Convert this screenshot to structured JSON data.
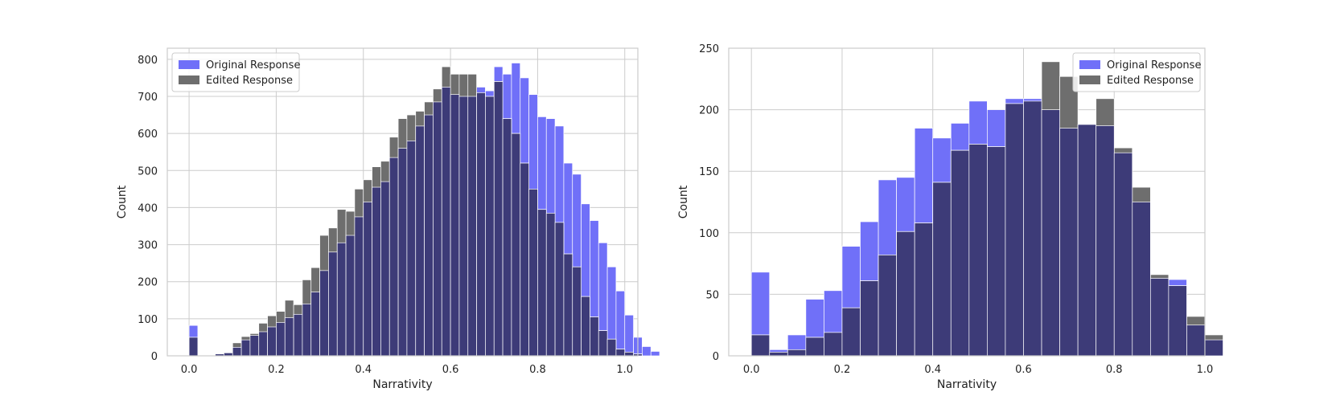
{
  "colors": {
    "original": "#7070f8",
    "edited": "#6e6e6e",
    "overlap": "#3d3b78",
    "grid": "#cccccc",
    "frame": "#cccccc",
    "bar_edge": "#ffffff"
  },
  "chart_data": [
    {
      "type": "bar",
      "subtype": "overlaid-histogram",
      "title": "",
      "xlabel": "Narrativity",
      "ylabel": "Count",
      "xlim": [
        -0.05,
        1.03
      ],
      "ylim": [
        0,
        830
      ],
      "xticks": [
        0.0,
        0.2,
        0.4,
        0.6,
        0.8,
        1.0
      ],
      "xtick_labels": [
        "0.0",
        "0.2",
        "0.4",
        "0.6",
        "0.8",
        "1.0"
      ],
      "yticks": [
        0,
        100,
        200,
        300,
        400,
        500,
        600,
        700,
        800
      ],
      "ytick_labels": [
        "0",
        "100",
        "200",
        "300",
        "400",
        "500",
        "600",
        "700",
        "800"
      ],
      "grid": true,
      "legend_position": "upper-left",
      "bin_start": 0.0,
      "bin_width": 0.02,
      "series": [
        {
          "name": "Original Response",
          "color": "#7070f8",
          "values": [
            82,
            0,
            0,
            5,
            8,
            23,
            43,
            55,
            65,
            78,
            90,
            103,
            112,
            140,
            172,
            230,
            280,
            305,
            325,
            375,
            415,
            455,
            470,
            535,
            560,
            580,
            620,
            650,
            685,
            725,
            705,
            700,
            700,
            725,
            715,
            780,
            760,
            790,
            750,
            705,
            645,
            640,
            620,
            520,
            490,
            410,
            365,
            305,
            240,
            175,
            110,
            50,
            25,
            12
          ]
        },
        {
          "name": "Edited Response",
          "color": "#6e6e6e",
          "values": [
            50,
            0,
            0,
            5,
            8,
            35,
            52,
            60,
            88,
            108,
            120,
            150,
            138,
            205,
            238,
            325,
            345,
            395,
            390,
            450,
            475,
            510,
            525,
            590,
            640,
            650,
            660,
            685,
            720,
            780,
            760,
            760,
            760,
            710,
            700,
            740,
            640,
            600,
            520,
            450,
            395,
            385,
            360,
            275,
            240,
            160,
            105,
            68,
            45,
            18,
            10,
            5,
            0,
            0
          ]
        }
      ]
    },
    {
      "type": "bar",
      "subtype": "overlaid-histogram",
      "title": "",
      "xlabel": "Narrativity",
      "ylabel": "Count",
      "xlim": [
        -0.05,
        1.0
      ],
      "ylim": [
        0,
        250
      ],
      "xticks": [
        0.0,
        0.2,
        0.4,
        0.6,
        0.8,
        1.0
      ],
      "xtick_labels": [
        "0.0",
        "0.2",
        "0.4",
        "0.6",
        "0.8",
        "1.0"
      ],
      "yticks": [
        0,
        50,
        100,
        150,
        200,
        250
      ],
      "ytick_labels": [
        "0",
        "50",
        "100",
        "150",
        "200",
        "250"
      ],
      "grid": true,
      "legend_position": "upper-right",
      "bin_start": 0.0,
      "bin_width": 0.04,
      "series": [
        {
          "name": "Original Response",
          "color": "#7070f8",
          "values": [
            68,
            5,
            17,
            46,
            53,
            89,
            109,
            143,
            145,
            185,
            177,
            189,
            207,
            200,
            209,
            209,
            200,
            185,
            188,
            187,
            165,
            125,
            63,
            62,
            25,
            13
          ]
        },
        {
          "name": "Edited Response",
          "color": "#6e6e6e",
          "values": [
            17,
            3,
            5,
            15,
            19,
            39,
            61,
            82,
            101,
            108,
            141,
            167,
            172,
            170,
            205,
            207,
            239,
            227,
            188,
            209,
            169,
            137,
            66,
            57,
            32,
            17
          ]
        }
      ]
    }
  ]
}
